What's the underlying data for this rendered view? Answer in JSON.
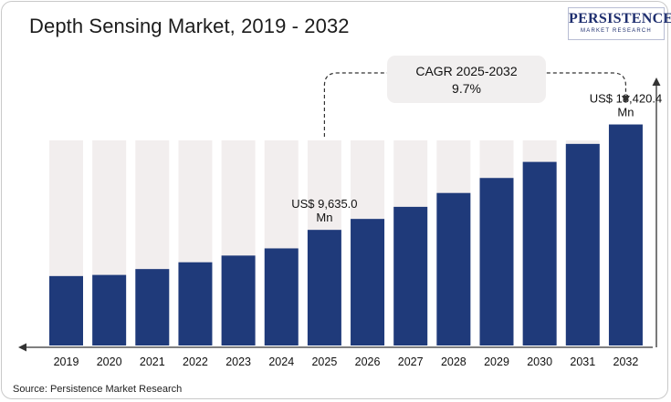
{
  "title": "Depth Sensing Market, 2019 - 2032",
  "logo": {
    "word": "PERSISTENCE",
    "sub": "MARKET RESEARCH"
  },
  "source": "Source: Persistence Market Research",
  "colors": {
    "bar": "#1f3a7a",
    "bar_background": "#f2eeee",
    "axis": "#333333",
    "cagr_box": "#f1efef"
  },
  "annotations": {
    "cagr_label": "CAGR 2025-2032",
    "cagr_value": "9.7%"
  },
  "chart_data": {
    "type": "bar",
    "title": "Depth Sensing Market, 2019 - 2032",
    "xlabel": "",
    "ylabel": "",
    "categories": [
      "2019",
      "2020",
      "2021",
      "2022",
      "2023",
      "2024",
      "2025",
      "2026",
      "2027",
      "2028",
      "2029",
      "2030",
      "2031",
      "2032"
    ],
    "values": [
      5785,
      5880,
      6370,
      6935,
      7494,
      8093,
      9635,
      10548,
      11555,
      12710,
      13960,
      15300,
      16800,
      18420.4
    ],
    "data_labels": [
      {
        "category": "2025",
        "line1": "US$ 9,635.0",
        "line2": "Mn"
      },
      {
        "category": "2032",
        "line1": "US$ 18,420.4",
        "line2": "Mn"
      }
    ],
    "ylim": [
      0,
      19600
    ],
    "grid": false,
    "background_bars": true
  }
}
